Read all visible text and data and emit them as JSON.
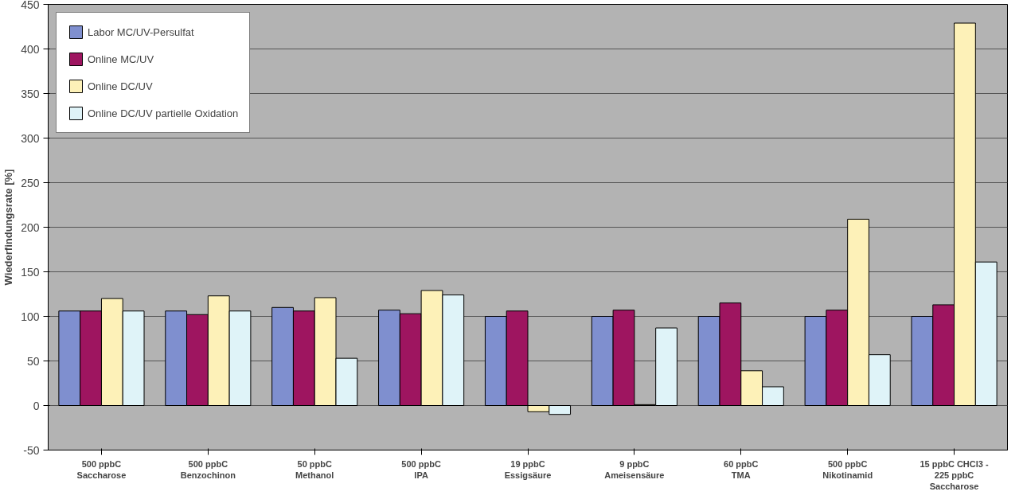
{
  "chart_data": {
    "type": "bar",
    "ylabel": "Wiederfindungsrate [%]",
    "categories": [
      "500 ppbC\nSaccharose",
      "500 ppbC\nBenzochinon",
      "50 ppbC\nMethanol",
      "500 ppbC\nIPA",
      "19 ppbC\nEssigsäure",
      "9 ppbC\nAmeisensäure",
      "60 ppbC\nTMA",
      "500 ppbC\nNikotinamid",
      "15 ppbC CHCl3 -\n225 ppbC\nSaccharose"
    ],
    "series": [
      {
        "name": "Labor MC/UV-Persulfat",
        "color": "#7f8fcf",
        "values": [
          106,
          106,
          110,
          107,
          100,
          100,
          100,
          100,
          100
        ]
      },
      {
        "name": "Online MC/UV",
        "color": "#9e1560",
        "values": [
          106,
          102,
          106,
          103,
          106,
          107,
          115,
          107,
          113
        ]
      },
      {
        "name": "Online DC/UV",
        "color": "#fdf1b8",
        "values": [
          120,
          123,
          121,
          129,
          -7,
          1,
          39,
          209,
          429
        ]
      },
      {
        "name": "Online DC/UV partielle Oxidation",
        "color": "#dff3f8",
        "values": [
          106,
          106,
          53,
          124,
          -10,
          87,
          21,
          57,
          161
        ]
      }
    ],
    "ylim": [
      -50,
      450
    ],
    "yticks": [
      -50,
      0,
      50,
      100,
      150,
      200,
      250,
      300,
      350,
      400,
      450
    ],
    "grid": "y",
    "legend": "top left"
  }
}
